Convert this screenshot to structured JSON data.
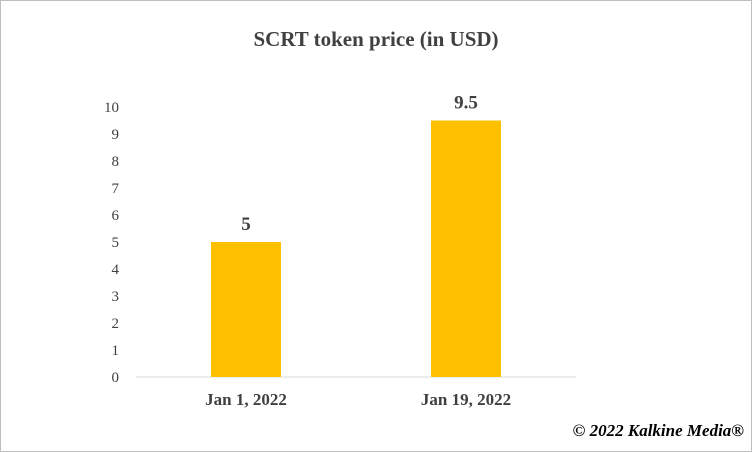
{
  "chart_data": {
    "type": "bar",
    "title": "SCRT token price (in USD)",
    "categories": [
      "Jan 1, 2022",
      "Jan 19, 2022"
    ],
    "values": [
      5,
      9.5
    ],
    "data_labels": [
      "5",
      "9.5"
    ],
    "xlabel": "",
    "ylabel": "",
    "ylim": [
      0,
      10
    ],
    "yticks": [
      0,
      1,
      2,
      3,
      4,
      5,
      6,
      7,
      8,
      9,
      10
    ],
    "grid": false,
    "legend": "none",
    "bar_color": "#FFC000"
  },
  "footer": {
    "copyright": "© 2022 Kalkine Media®"
  }
}
